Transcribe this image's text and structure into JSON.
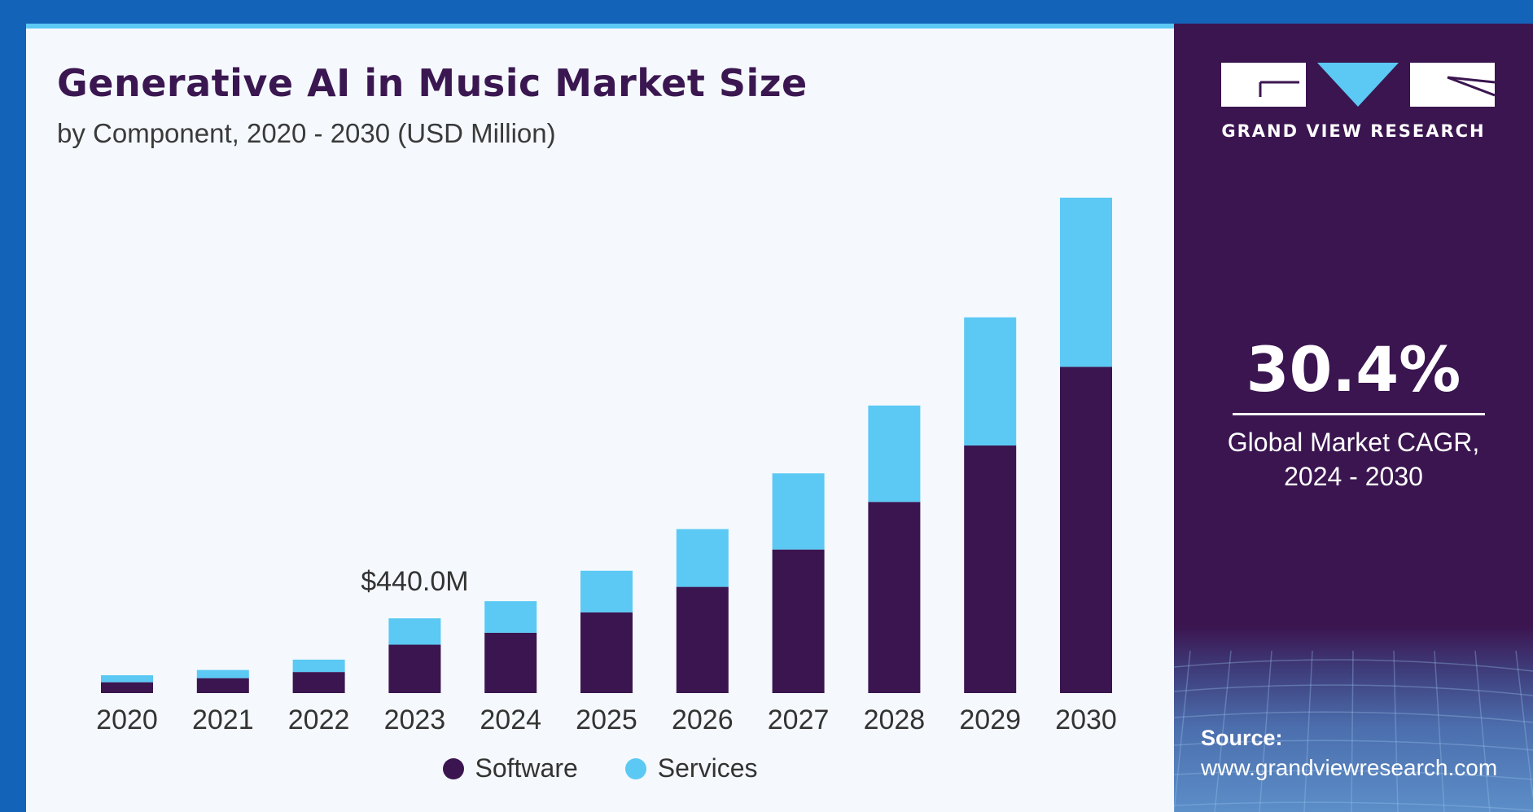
{
  "chart_data": {
    "type": "bar",
    "stacked": true,
    "title": "Generative AI in Music Market Size",
    "subtitle": "by Component, 2020 - 2030 (USD Million)",
    "categories": [
      "2020",
      "2021",
      "2022",
      "2023",
      "2024",
      "2025",
      "2026",
      "2027",
      "2028",
      "2029",
      "2030"
    ],
    "series": [
      {
        "name": "Software",
        "color": "#3b1550",
        "values": [
          64,
          88,
          124,
          285,
          355,
          475,
          625,
          845,
          1125,
          1457,
          1920
        ]
      },
      {
        "name": "Services",
        "color": "#5bc9f4",
        "values": [
          41,
          48,
          73,
          155,
          186,
          245,
          340,
          448,
          567,
          754,
          995
        ]
      }
    ],
    "annotation": {
      "category": "2023",
      "label": "$440.0M"
    },
    "ylim": [
      0,
      3000
    ],
    "legend_position": "bottom-center",
    "grid": false
  },
  "side": {
    "brand": "GRAND VIEW RESEARCH",
    "cagr_value": "30.4%",
    "cagr_label_line1": "Global Market CAGR,",
    "cagr_label_line2": "2024 - 2030",
    "source_title": "Source:",
    "source_url": "www.grandviewresearch.com"
  }
}
